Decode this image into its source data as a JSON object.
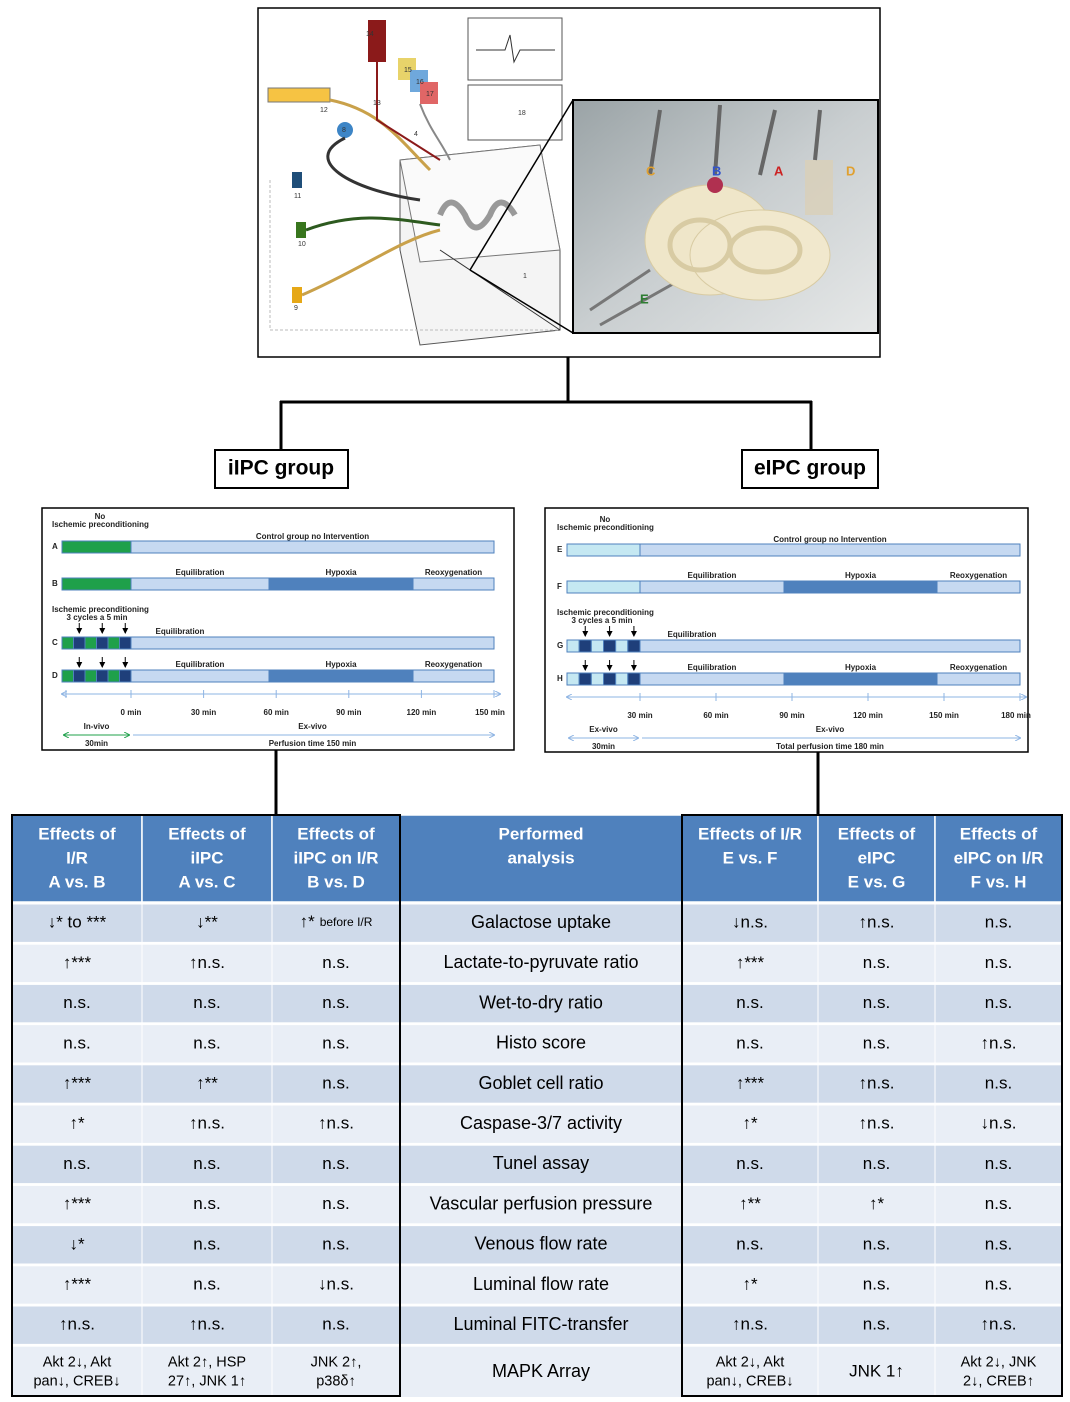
{
  "apparatus": {
    "numbers": [
      "14",
      "13",
      "12",
      "15",
      "16",
      "17",
      "18",
      "8",
      "4",
      "11",
      "10",
      "9",
      "1"
    ],
    "photo_labels": [
      "C",
      "B",
      "A",
      "D",
      "E"
    ]
  },
  "groups": [
    "iIPC group",
    "eIPC group"
  ],
  "timelines": [
    {
      "no": "No",
      "ischemic_preconditioning": "Ischemic preconditioning",
      "control": "Control group no Intervention",
      "rows": [
        "A",
        "B",
        "C",
        "D"
      ],
      "equilibration": "Equilibration",
      "hypoxia": "Hypoxia",
      "reoxygenation": "Reoxygenation",
      "cycles": "3 cycles a 5 min",
      "ticks": [
        "0 min",
        "30 min",
        "60 min",
        "90 min",
        "120 min",
        "150 min"
      ],
      "pre_phase": "In-vivo",
      "pre_duration": "30min",
      "main_phase": "Ex-vivo",
      "main_duration": "Perfusion time 150 min"
    },
    {
      "no": "No",
      "ischemic_preconditioning": "Ischemic preconditioning",
      "control": "Control group no Intervention",
      "rows": [
        "E",
        "F",
        "G",
        "H"
      ],
      "equilibration": "Equilibration",
      "hypoxia": "Hypoxia",
      "reoxygenation": "Reoxygenation",
      "cycles": "3 cycles a 5 min",
      "ticks": [
        "30 min",
        "60 min",
        "90 min",
        "120 min",
        "150 min",
        "180 min"
      ],
      "pre_phase": "Ex-vivo",
      "pre_duration": "30min",
      "main_phase": "Ex-vivo",
      "main_duration": "Total perfusion time 180 min"
    }
  ],
  "table": {
    "header": [
      [
        "Effects of",
        "I/R",
        "A vs. B"
      ],
      [
        "Effects of",
        "iIPC",
        "A vs. C"
      ],
      [
        "Effects of",
        "iIPC on I/R",
        "B vs. D"
      ],
      [
        "Performed",
        "analysis"
      ],
      [
        "Effects of I/R",
        "E vs. F"
      ],
      [
        "Effects of",
        "eIPC",
        "E vs. G"
      ],
      [
        "Effects of",
        "eIPC on I/R",
        "F vs. H"
      ]
    ],
    "rows": [
      [
        "↓* to ***",
        "↓**",
        {
          "text": "↑*",
          "note": "before I/R"
        },
        "Galactose uptake",
        "↓n.s.",
        "↑n.s.",
        "n.s."
      ],
      [
        "↑***",
        "↑n.s.",
        "n.s.",
        "Lactate-to-pyruvate ratio",
        "↑***",
        "n.s.",
        "n.s."
      ],
      [
        "n.s.",
        "n.s.",
        "n.s.",
        "Wet-to-dry ratio",
        "n.s.",
        "n.s.",
        "n.s."
      ],
      [
        "n.s.",
        "n.s.",
        "n.s.",
        "Histo score",
        "n.s.",
        "n.s.",
        "↑n.s."
      ],
      [
        "↑***",
        "↑**",
        "n.s.",
        "Goblet cell ratio",
        "↑***",
        "↑n.s.",
        "n.s."
      ],
      [
        "↑*",
        "↑n.s.",
        "↑n.s.",
        "Caspase-3/7 activity",
        "↑*",
        "↑n.s.",
        "↓n.s."
      ],
      [
        "n.s.",
        "n.s.",
        "n.s.",
        "Tunel assay",
        "n.s.",
        "n.s.",
        "n.s."
      ],
      [
        "↑***",
        "n.s.",
        "n.s.",
        "Vascular perfusion pressure",
        "↑**",
        "↑*",
        "n.s."
      ],
      [
        "↓*",
        "n.s.",
        "n.s.",
        "Venous flow rate",
        "n.s.",
        "n.s.",
        "n.s."
      ],
      [
        "↑***",
        "n.s.",
        "↓n.s.",
        "Luminal flow rate",
        "↑*",
        "n.s.",
        "n.s."
      ],
      [
        "↑n.s.",
        "↑n.s.",
        "n.s.",
        "Luminal FITC-transfer",
        "↑n.s.",
        "n.s.",
        "↑n.s."
      ],
      [
        [
          "Akt 2↓, Akt",
          "pan↓, CREB↓"
        ],
        [
          "Akt 2↑, HSP",
          "27↑, JNK 1↑"
        ],
        [
          "JNK 2↑,",
          "p38δ↑"
        ],
        "MAPK Array",
        [
          "Akt 2↓, Akt",
          "pan↓, CREB↓"
        ],
        "JNK 1↑",
        [
          "Akt 2↓, JNK",
          "2↓, CREB↑"
        ]
      ]
    ]
  }
}
